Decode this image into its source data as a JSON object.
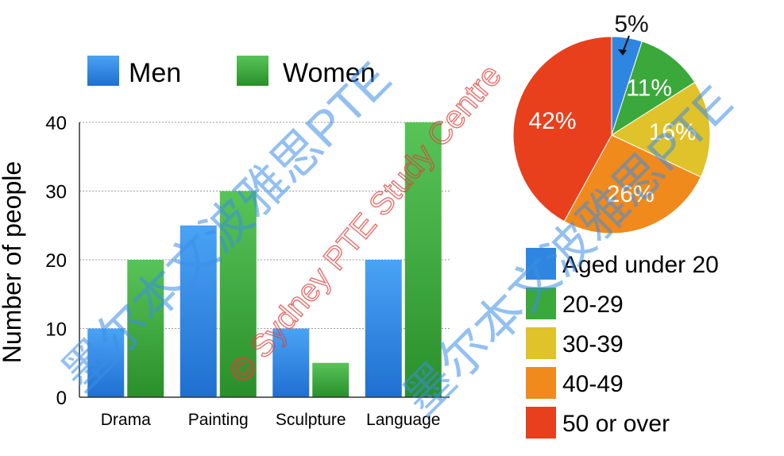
{
  "chart_data": [
    {
      "type": "bar",
      "categories": [
        "Drama",
        "Painting",
        "Sculpture",
        "Language"
      ],
      "series": [
        {
          "name": "Men",
          "values": [
            10,
            25,
            10,
            20
          ],
          "color": "#2f86e0"
        },
        {
          "name": "Women",
          "values": [
            20,
            30,
            5,
            40
          ],
          "color": "#3aa83a"
        }
      ],
      "ylabel": "Number of people",
      "ylim": [
        0,
        40
      ],
      "yticks": [
        "0",
        "10",
        "20",
        "30",
        "40"
      ],
      "grid": true,
      "legend": "top"
    },
    {
      "type": "pie",
      "slices": [
        {
          "label": "Aged under 20",
          "value": 5,
          "text": "5%",
          "color": "#2f86e0"
        },
        {
          "label": "20-29",
          "value": 11,
          "text": "11%",
          "color": "#3aa83a"
        },
        {
          "label": "30-39",
          "value": 16,
          "text": "16%",
          "color": "#e0c22a"
        },
        {
          "label": "40-49",
          "value": 26,
          "text": "26%",
          "color": "#f08a1c"
        },
        {
          "label": "50 or over",
          "value": 42,
          "text": "42%",
          "color": "#e8401c"
        }
      ],
      "legend": "bottom-right"
    }
  ],
  "watermarks": {
    "center": "© Sydney PTE Study Centre",
    "chinese": "墨尔本文波雅思PTE"
  }
}
